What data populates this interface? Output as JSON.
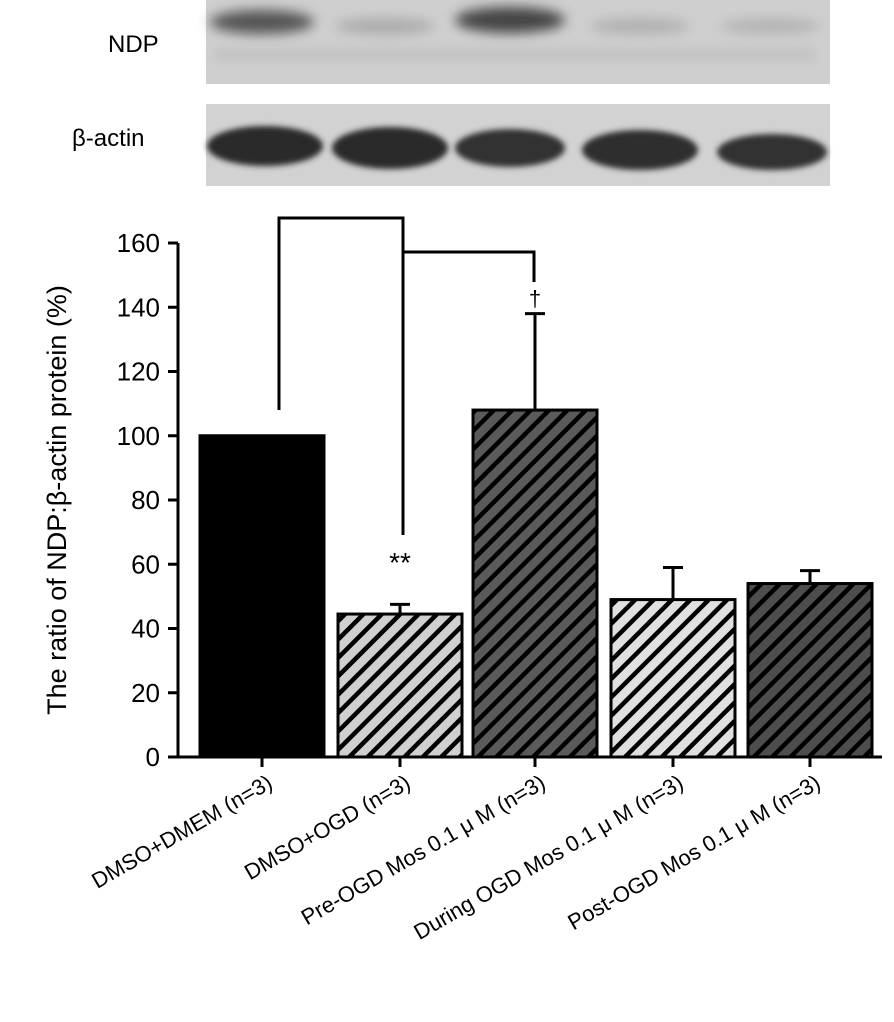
{
  "chart_data": {
    "type": "bar",
    "blot_labels": [
      "NDP",
      "β-actin"
    ],
    "y_label": "The ratio of NDP:β-actin protein (%)",
    "categories": [
      "DMSO+DMEM (n=3)",
      "DMSO+OGD (n=3)",
      "Pre-OGD Mos 0.1 μ M (n=3)",
      "During OGD Mos 0.1 μ M (n=3)",
      "Post-OGD Mos 0.1 μ M (n=3)"
    ],
    "values": [
      100,
      44.5,
      108,
      49,
      54
    ],
    "errors": [
      0,
      3,
      30,
      10,
      4
    ],
    "colors": [
      "#000000",
      "#d0d0d0",
      "#5a5a5a",
      "#e0e0e0",
      "#4d4d4d"
    ],
    "hatched": [
      false,
      true,
      true,
      true,
      true
    ],
    "annotations": [
      "**",
      "†"
    ],
    "ylim": [
      0,
      160
    ],
    "yticks": [
      0,
      20,
      40,
      60,
      80,
      100,
      120,
      140,
      160
    ]
  }
}
